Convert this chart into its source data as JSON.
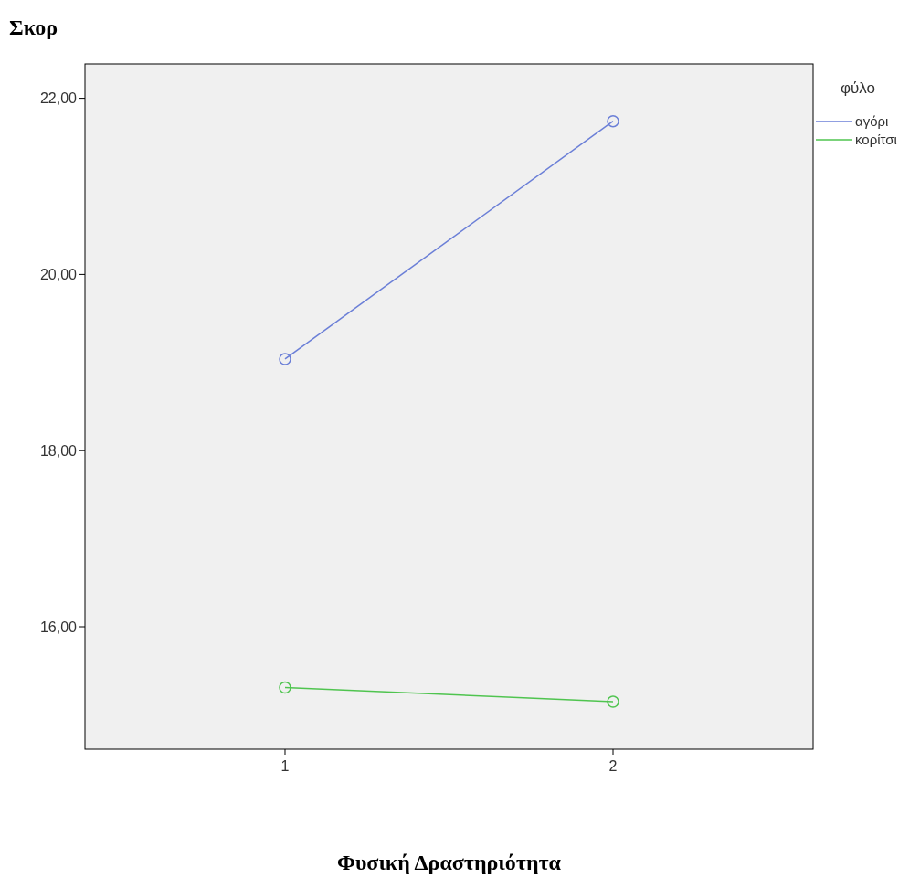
{
  "chart_data": {
    "type": "line",
    "ylabel": "Σκορ",
    "xlabel": "Φυσική Δραστηριότητα",
    "legend_title": "φύλο",
    "categories": [
      "1",
      "2"
    ],
    "series": [
      {
        "name": "αγόρι",
        "color": "#6b7fd7",
        "values": [
          19.04,
          21.74
        ]
      },
      {
        "name": "κορίτσι",
        "color": "#4fc44f",
        "values": [
          15.31,
          15.15
        ]
      }
    ],
    "ylim": [
      14.61,
      22.39
    ],
    "yticks": [
      {
        "value": 16,
        "label": "16,00"
      },
      {
        "value": 18,
        "label": "18,00"
      },
      {
        "value": 20,
        "label": "20,00"
      },
      {
        "value": 22,
        "label": "22,00"
      }
    ],
    "grid": false,
    "legend": "top right",
    "marker": "circle",
    "line_style": "solid"
  }
}
